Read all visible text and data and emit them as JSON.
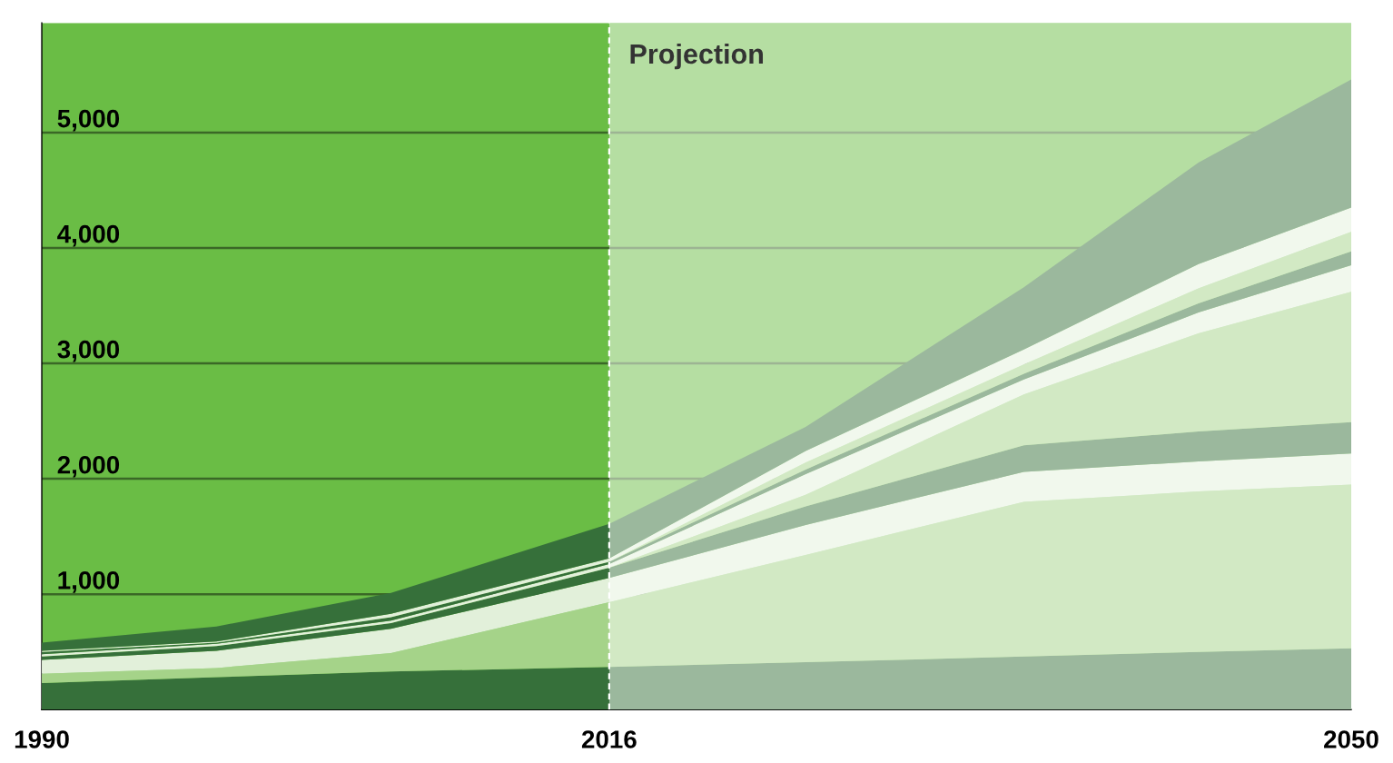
{
  "chart_data": {
    "type": "area",
    "stacked": true,
    "xlim": [
      1990,
      2050
    ],
    "xticks": [
      1990,
      2016,
      2050
    ],
    "ylim": [
      0,
      5950
    ],
    "yticks": [
      {
        "value": 1000,
        "label": "1,000"
      },
      {
        "value": 2000,
        "label": "2,000"
      },
      {
        "value": 3000,
        "label": "3,000"
      },
      {
        "value": 4000,
        "label": "4,000"
      },
      {
        "value": 5000,
        "label": "5,000"
      }
    ],
    "grid": "y",
    "legend": false,
    "x": [
      1990,
      1998,
      2006,
      2016,
      2025,
      2035,
      2043,
      2050
    ],
    "bands": [
      {
        "axis": "x",
        "from": 1990,
        "to": 2050,
        "label": null,
        "color": "#6abd45"
      },
      {
        "axis": "x",
        "from": 2016,
        "to": 2050,
        "label": "Projection",
        "color": "#ffffff"
      }
    ],
    "ref_lines": [
      {
        "axis": "x",
        "value": 2016,
        "label": null,
        "color": "#ffffff",
        "line_style": "dashed"
      }
    ],
    "series": [
      {
        "color": "#36703a",
        "values": [
          230,
          280,
          330,
          370,
          410,
          460,
          500,
          530
        ]
      },
      {
        "color": "#a5d389",
        "values": [
          80,
          80,
          160,
          560,
          930,
          1340,
          1390,
          1420
        ]
      },
      {
        "color": "#e2f0da",
        "values": [
          120,
          150,
          210,
          210,
          260,
          260,
          260,
          270
        ]
      },
      {
        "color": "#36703a",
        "values": [
          30,
          40,
          50,
          90,
          160,
          230,
          260,
          270
        ]
      },
      {
        "color": "#a5d389",
        "values": [
          0,
          0,
          0,
          0,
          100,
          440,
          850,
          1130
        ]
      },
      {
        "color": "#e2f0da",
        "values": [
          20,
          20,
          20,
          30,
          180,
          130,
          180,
          230
        ]
      },
      {
        "color": "#36703a",
        "values": [
          20,
          10,
          30,
          20,
          40,
          50,
          80,
          120
        ]
      },
      {
        "color": "#a5d389",
        "values": [
          0,
          0,
          0,
          0,
          60,
          80,
          130,
          170
        ]
      },
      {
        "color": "#e2f0da",
        "values": [
          10,
          10,
          30,
          30,
          100,
          130,
          210,
          210
        ]
      },
      {
        "color": "#36703a",
        "values": [
          70,
          130,
          180,
          300,
          210,
          540,
          880,
          1110
        ]
      }
    ]
  }
}
